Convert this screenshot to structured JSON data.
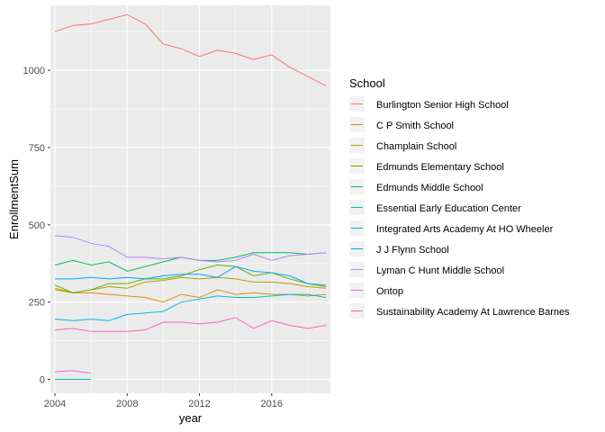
{
  "chart_data": {
    "type": "line",
    "title": "",
    "xlabel": "year",
    "ylabel": "EnrollmentSum",
    "xlim": [
      2003.75,
      2019.25
    ],
    "ylim": [
      -45,
      1210
    ],
    "x_ticks": [
      2004,
      2008,
      2012,
      2016
    ],
    "x_tick_labels": [
      "2004",
      "2008",
      "2012",
      "2016"
    ],
    "y_ticks": [
      0,
      250,
      500,
      750,
      1000
    ],
    "y_tick_labels": [
      "0",
      "250",
      "500",
      "750",
      "1000"
    ],
    "grid": true,
    "legend_title": "School",
    "legend_position": "right",
    "series": [
      {
        "name": "Burlington Senior High School",
        "color": "#F8766D",
        "x": [
          2004,
          2005,
          2006,
          2007,
          2008,
          2009,
          2010,
          2011,
          2012,
          2013,
          2014,
          2015,
          2016,
          2017,
          2018,
          2019
        ],
        "values": [
          1125,
          1145,
          1150,
          1165,
          1180,
          1150,
          1085,
          1070,
          1045,
          1065,
          1055,
          1035,
          1050,
          1010,
          980,
          950
        ]
      },
      {
        "name": "C P Smith School",
        "color": "#DB8E00",
        "x": [
          2004,
          2005,
          2006,
          2007,
          2008,
          2009,
          2010,
          2011,
          2012,
          2013,
          2014,
          2015,
          2016,
          2017,
          2018,
          2019
        ],
        "values": [
          290,
          280,
          280,
          275,
          270,
          265,
          250,
          275,
          265,
          290,
          275,
          280,
          275,
          275,
          270,
          275
        ]
      },
      {
        "name": "Champlain School",
        "color": "#AEA200",
        "x": [
          2004,
          2005,
          2006,
          2007,
          2008,
          2009,
          2010,
          2011,
          2012,
          2013,
          2014,
          2015,
          2016,
          2017,
          2018,
          2019
        ],
        "values": [
          295,
          280,
          290,
          300,
          295,
          315,
          320,
          330,
          325,
          330,
          325,
          315,
          315,
          310,
          300,
          295
        ]
      },
      {
        "name": "Edmunds Elementary School",
        "color": "#64B200",
        "x": [
          2004,
          2005,
          2006,
          2007,
          2008,
          2009,
          2010,
          2011,
          2012,
          2013,
          2014,
          2015,
          2016,
          2017,
          2018,
          2019
        ],
        "values": [
          305,
          280,
          290,
          310,
          310,
          325,
          325,
          335,
          355,
          370,
          365,
          335,
          345,
          325,
          310,
          300
        ]
      },
      {
        "name": "Edmunds Middle School",
        "color": "#00BD5C",
        "x": [
          2004,
          2005,
          2006,
          2007,
          2008,
          2009,
          2010,
          2011,
          2012,
          2013,
          2014,
          2015,
          2016,
          2017,
          2018,
          2019
        ],
        "values": [
          370,
          385,
          370,
          380,
          350,
          365,
          380,
          395,
          385,
          385,
          395,
          410,
          410,
          410,
          405,
          410
        ]
      },
      {
        "name": "Essential Early Education Center",
        "color": "#00C1A7",
        "x": [
          2004,
          2005,
          2006
        ],
        "values": [
          0,
          0,
          0
        ]
      },
      {
        "name": "Integrated Arts Academy At HO Wheeler",
        "color": "#00BADE",
        "x": [
          2004,
          2005,
          2006,
          2007,
          2008,
          2009,
          2010,
          2011,
          2012,
          2013,
          2014,
          2015,
          2016,
          2017,
          2018,
          2019
        ],
        "values": [
          195,
          190,
          195,
          190,
          210,
          215,
          220,
          250,
          260,
          270,
          265,
          265,
          270,
          275,
          275,
          265
        ]
      },
      {
        "name": "J J Flynn School",
        "color": "#00A6FF",
        "x": [
          2004,
          2005,
          2006,
          2007,
          2008,
          2009,
          2010,
          2011,
          2012,
          2013,
          2014,
          2015,
          2016,
          2017,
          2018,
          2019
        ],
        "values": [
          325,
          325,
          330,
          325,
          330,
          325,
          335,
          340,
          340,
          330,
          365,
          350,
          345,
          335,
          310,
          305
        ]
      },
      {
        "name": "Lyman C Hunt Middle School",
        "color": "#B385FF",
        "x": [
          2004,
          2005,
          2006,
          2007,
          2008,
          2009,
          2010,
          2011,
          2012,
          2013,
          2014,
          2015,
          2016,
          2017,
          2018,
          2019
        ],
        "values": [
          465,
          460,
          440,
          430,
          395,
          395,
          390,
          395,
          385,
          380,
          385,
          405,
          385,
          400,
          405,
          410
        ]
      },
      {
        "name": "Ontop",
        "color": "#EF67EB",
        "x": [
          2004,
          2005,
          2006
        ],
        "values": [
          25,
          28,
          20
        ]
      },
      {
        "name": "Sustainability Academy At Lawrence Barnes",
        "color": "#FF63B6",
        "x": [
          2004,
          2005,
          2006,
          2007,
          2008,
          2009,
          2010,
          2011,
          2012,
          2013,
          2014,
          2015,
          2016,
          2017,
          2018,
          2019
        ],
        "values": [
          160,
          165,
          155,
          155,
          155,
          160,
          185,
          185,
          180,
          185,
          200,
          165,
          190,
          175,
          165,
          175
        ]
      }
    ]
  }
}
